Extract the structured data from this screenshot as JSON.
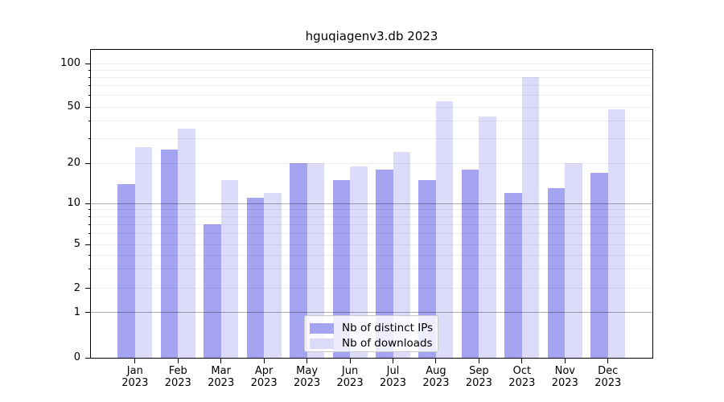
{
  "chart_data": {
    "type": "bar",
    "title": "hguqiagenv3.db 2023",
    "year_label": "2023",
    "categories": [
      "Jan",
      "Feb",
      "Mar",
      "Apr",
      "May",
      "Jun",
      "Jul",
      "Aug",
      "Sep",
      "Oct",
      "Nov",
      "Dec"
    ],
    "series": [
      {
        "name": "Nb of distinct IPs",
        "color": "#a4a4f2",
        "values": [
          14,
          25,
          7,
          11,
          20,
          15,
          18,
          15,
          18,
          12,
          13,
          17
        ]
      },
      {
        "name": "Nb of downloads",
        "color": "#dcdcfa",
        "values": [
          26,
          35,
          15,
          12,
          20,
          19,
          24,
          55,
          43,
          80,
          20,
          48
        ]
      }
    ],
    "y_ticks": [
      0,
      1,
      2,
      5,
      10,
      20,
      50,
      100
    ],
    "y_scale": "log-like with linear segment below 1",
    "ylim": [
      0,
      125
    ],
    "xlabel": "",
    "ylabel": "",
    "grid": true,
    "legend_position": "lower center",
    "background_color": "#ffffff",
    "major_gridline_values": [
      1,
      10
    ],
    "minor_gridline_values": [
      2,
      3,
      4,
      5,
      6,
      7,
      8,
      9,
      20,
      30,
      40,
      50,
      60,
      70,
      80,
      90,
      100
    ]
  }
}
